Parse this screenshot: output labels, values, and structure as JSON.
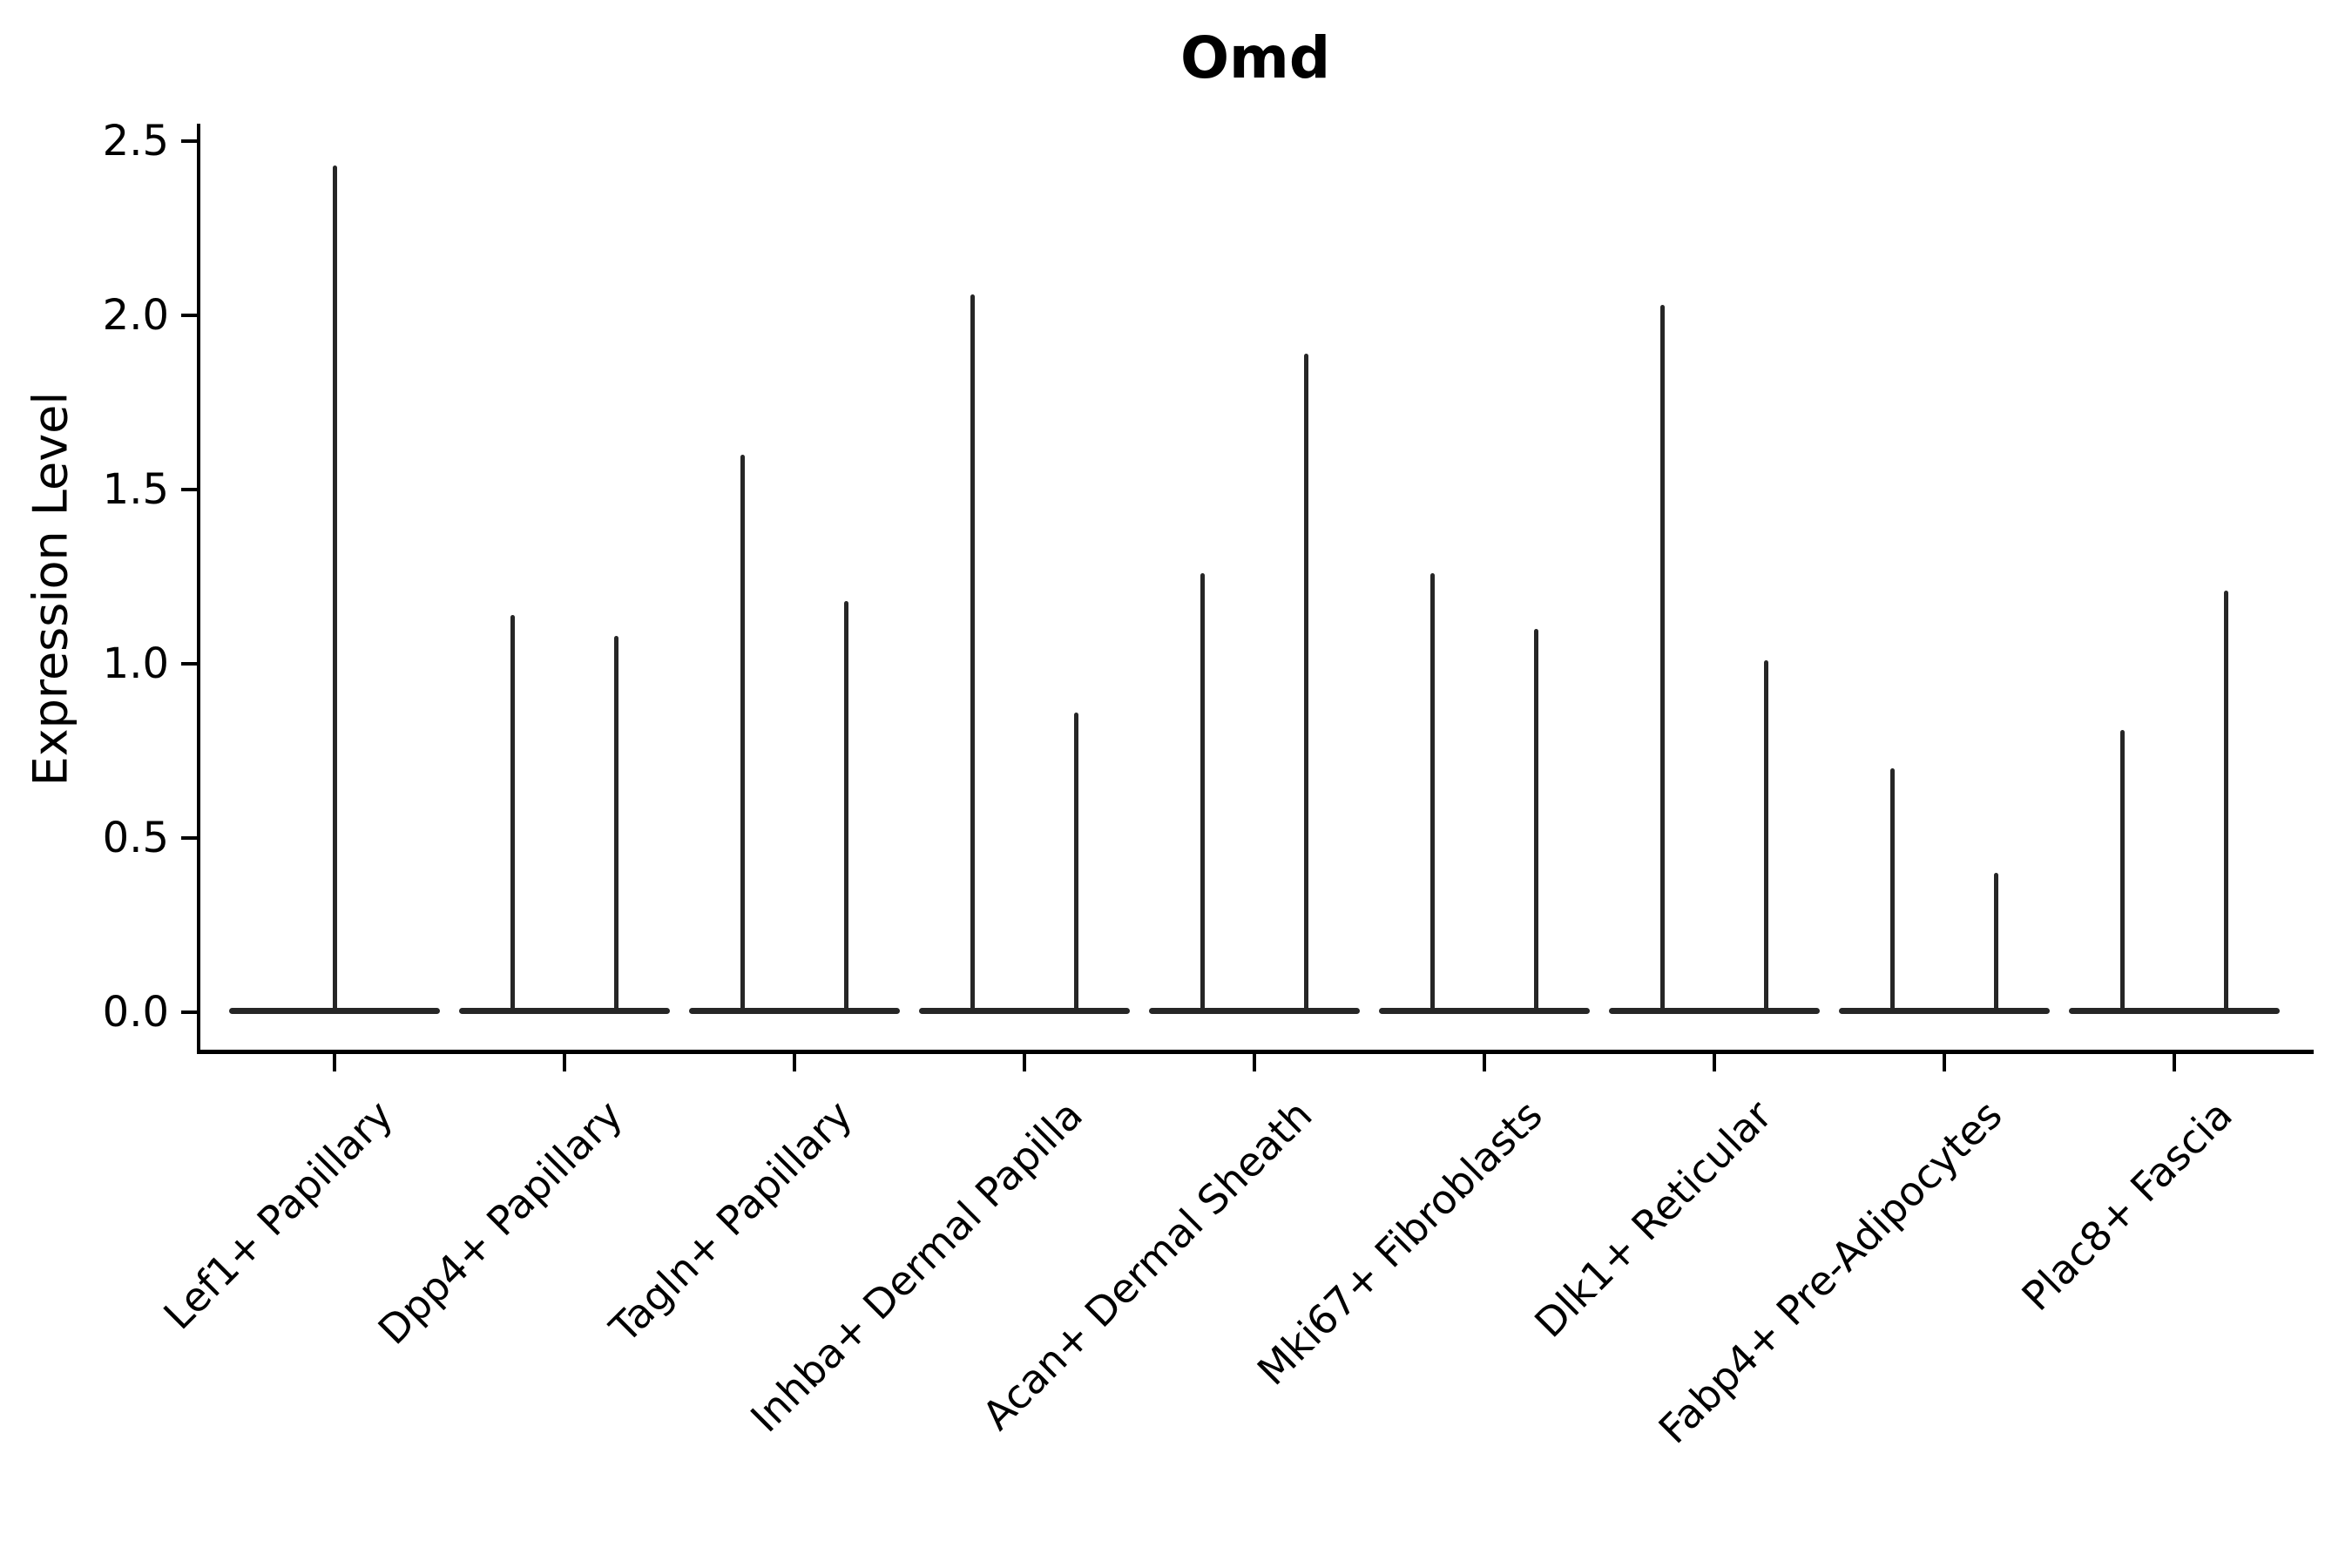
{
  "chart_data": {
    "type": "violin",
    "title": "Omd",
    "ylabel": "Expression Level",
    "xlabel": "",
    "grid": false,
    "legend": "none",
    "background": "#ffffff",
    "line_color": "#262626",
    "axis_color": "#000000",
    "ytick_labels": [
      "0.0",
      "0.5",
      "1.0",
      "1.5",
      "2.0",
      "2.5"
    ],
    "ytick_values": [
      0,
      0.5,
      1,
      1.5,
      2,
      2.5
    ],
    "ylim": [
      -0.12,
      2.55
    ],
    "categories": [
      "Lef1+ Papillary",
      "Dpp4+ Papillary",
      "Tagln+ Papillary",
      "Inhba+ Dermal Papilla",
      "Acan+ Dermal Sheath",
      "Mki67+ Fibroblasts",
      "Dlk1+ Reticular",
      "Fabp4+ Pre-Adipocytes",
      "Plac8+ Fascia"
    ],
    "description": "Violin plot of Omd expression; each violin collapses to a flat bar at 0 with thin vertical spikes reaching the maximum expression values.",
    "violins": [
      {
        "category": "Lef1+ Papillary",
        "spike_offsets": [
          0
        ],
        "spike_maxima": [
          2.43
        ]
      },
      {
        "category": "Dpp4+ Papillary",
        "spike_offsets": [
          -0.227,
          0.227
        ],
        "spike_maxima": [
          1.14,
          1.08
        ]
      },
      {
        "category": "Tagln+ Papillary",
        "spike_offsets": [
          -0.227,
          0.227
        ],
        "spike_maxima": [
          1.6,
          1.18
        ]
      },
      {
        "category": "Inhba+ Dermal Papilla",
        "spike_offsets": [
          -0.227,
          0.227
        ],
        "spike_maxima": [
          2.06,
          0.86
        ]
      },
      {
        "category": "Acan+ Dermal Sheath",
        "spike_offsets": [
          -0.227,
          0.227
        ],
        "spike_maxima": [
          1.26,
          1.89
        ]
      },
      {
        "category": "Mki67+ Fibroblasts",
        "spike_offsets": [
          -0.227,
          0.227
        ],
        "spike_maxima": [
          1.26,
          1.1
        ]
      },
      {
        "category": "Dlk1+ Reticular",
        "spike_offsets": [
          -0.227,
          0.227
        ],
        "spike_maxima": [
          2.03,
          1.01
        ]
      },
      {
        "category": "Fabp4+ Pre-Adipocytes",
        "spike_offsets": [
          -0.227,
          0.227
        ],
        "spike_maxima": [
          0.7,
          0.4
        ]
      },
      {
        "category": "Plac8+ Fascia",
        "spike_offsets": [
          -0.227,
          0.227
        ],
        "spike_maxima": [
          0.81,
          1.21
        ]
      }
    ]
  }
}
